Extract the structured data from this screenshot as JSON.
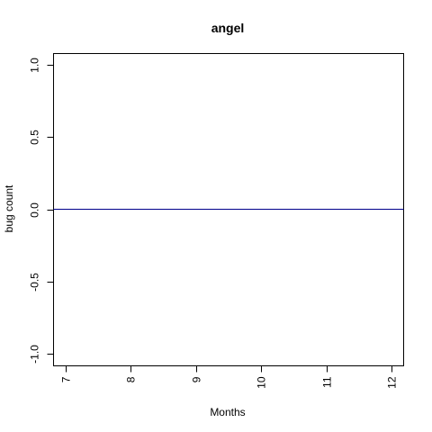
{
  "chart_data": {
    "type": "line",
    "title": "angel",
    "xlabel": "Months",
    "ylabel": "bug count",
    "xlim": [
      7,
      12
    ],
    "ylim": [
      -1.0,
      1.0
    ],
    "x_ticks": [
      7,
      8,
      9,
      10,
      11,
      12
    ],
    "y_ticks": [
      -1.0,
      -0.5,
      0.0,
      0.5,
      1.0
    ],
    "x_tick_labels": [
      "7",
      "8",
      "9",
      "10",
      "11",
      "12"
    ],
    "y_tick_labels": [
      "-1.0",
      "-0.5",
      "0.0",
      "0.5",
      "1.0"
    ],
    "grid": false,
    "series": [
      {
        "x": [
          7,
          8,
          9,
          10,
          11,
          12
        ],
        "y": [
          0,
          0,
          0,
          0,
          0,
          0
        ],
        "color": "#00008B"
      }
    ]
  }
}
